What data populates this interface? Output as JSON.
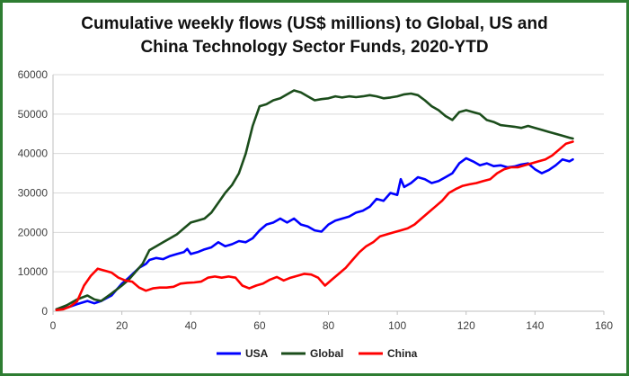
{
  "chart_data": {
    "type": "line",
    "title_line1": "Cumulative weekly flows (US$ millions) to Global, US and",
    "title_line2": "China Technology Sector Funds, 2020-YTD",
    "xlabel": "",
    "ylabel": "",
    "xlim": [
      0,
      160
    ],
    "ylim": [
      0,
      60000
    ],
    "xticks": [
      "0",
      "20",
      "40",
      "60",
      "80",
      "100",
      "120",
      "140",
      "160"
    ],
    "yticks": [
      "0",
      "10000",
      "20000",
      "30000",
      "40000",
      "50000",
      "60000"
    ],
    "grid": "horizontal",
    "legend_position": "bottom",
    "series": [
      {
        "name": "USA",
        "color": "#0000ff",
        "points": [
          [
            1,
            500
          ],
          [
            4,
            900
          ],
          [
            7,
            1800
          ],
          [
            10,
            2600
          ],
          [
            12,
            2000
          ],
          [
            14,
            2600
          ],
          [
            17,
            4000
          ],
          [
            20,
            7000
          ],
          [
            22,
            8500
          ],
          [
            25,
            11000
          ],
          [
            27,
            12000
          ],
          [
            28,
            13000
          ],
          [
            30,
            13500
          ],
          [
            32,
            13200
          ],
          [
            34,
            14000
          ],
          [
            36,
            14500
          ],
          [
            38,
            15000
          ],
          [
            39,
            15800
          ],
          [
            40,
            14500
          ],
          [
            42,
            15000
          ],
          [
            44,
            15700
          ],
          [
            46,
            16200
          ],
          [
            48,
            17500
          ],
          [
            50,
            16500
          ],
          [
            52,
            17000
          ],
          [
            54,
            17800
          ],
          [
            56,
            17500
          ],
          [
            58,
            18500
          ],
          [
            60,
            20500
          ],
          [
            62,
            22000
          ],
          [
            64,
            22500
          ],
          [
            66,
            23500
          ],
          [
            68,
            22500
          ],
          [
            70,
            23500
          ],
          [
            72,
            22000
          ],
          [
            74,
            21500
          ],
          [
            76,
            20500
          ],
          [
            78,
            20200
          ],
          [
            80,
            22000
          ],
          [
            82,
            23000
          ],
          [
            84,
            23500
          ],
          [
            86,
            24000
          ],
          [
            88,
            25000
          ],
          [
            90,
            25500
          ],
          [
            92,
            26500
          ],
          [
            94,
            28500
          ],
          [
            96,
            28000
          ],
          [
            98,
            30000
          ],
          [
            100,
            29500
          ],
          [
            101,
            33500
          ],
          [
            102,
            31500
          ],
          [
            104,
            32500
          ],
          [
            106,
            34000
          ],
          [
            108,
            33500
          ],
          [
            110,
            32500
          ],
          [
            112,
            33000
          ],
          [
            114,
            34000
          ],
          [
            116,
            35000
          ],
          [
            118,
            37500
          ],
          [
            120,
            38800
          ],
          [
            122,
            38000
          ],
          [
            124,
            37000
          ],
          [
            126,
            37500
          ],
          [
            128,
            36800
          ],
          [
            130,
            37000
          ],
          [
            132,
            36500
          ],
          [
            134,
            36700
          ],
          [
            136,
            37200
          ],
          [
            138,
            37500
          ],
          [
            140,
            36000
          ],
          [
            142,
            35000
          ],
          [
            144,
            35800
          ],
          [
            146,
            37000
          ],
          [
            148,
            38500
          ],
          [
            150,
            38000
          ],
          [
            151,
            38500
          ]
        ]
      },
      {
        "name": "Global",
        "color": "#1b4d1b",
        "points": [
          [
            1,
            500
          ],
          [
            4,
            1500
          ],
          [
            7,
            3000
          ],
          [
            10,
            4000
          ],
          [
            12,
            3000
          ],
          [
            14,
            2600
          ],
          [
            17,
            4500
          ],
          [
            20,
            6500
          ],
          [
            22,
            8000
          ],
          [
            24,
            10000
          ],
          [
            26,
            12000
          ],
          [
            28,
            15500
          ],
          [
            30,
            16500
          ],
          [
            32,
            17500
          ],
          [
            34,
            18500
          ],
          [
            36,
            19500
          ],
          [
            38,
            21000
          ],
          [
            40,
            22500
          ],
          [
            42,
            23000
          ],
          [
            44,
            23500
          ],
          [
            46,
            25000
          ],
          [
            48,
            27500
          ],
          [
            50,
            30000
          ],
          [
            52,
            32000
          ],
          [
            54,
            35000
          ],
          [
            56,
            40000
          ],
          [
            58,
            47000
          ],
          [
            60,
            52000
          ],
          [
            62,
            52500
          ],
          [
            64,
            53500
          ],
          [
            66,
            54000
          ],
          [
            68,
            55000
          ],
          [
            70,
            56000
          ],
          [
            72,
            55500
          ],
          [
            74,
            54500
          ],
          [
            76,
            53500
          ],
          [
            78,
            53800
          ],
          [
            80,
            54000
          ],
          [
            82,
            54500
          ],
          [
            84,
            54200
          ],
          [
            86,
            54500
          ],
          [
            88,
            54300
          ],
          [
            90,
            54500
          ],
          [
            92,
            54800
          ],
          [
            94,
            54500
          ],
          [
            96,
            54000
          ],
          [
            98,
            54200
          ],
          [
            100,
            54500
          ],
          [
            102,
            55000
          ],
          [
            104,
            55200
          ],
          [
            106,
            54800
          ],
          [
            108,
            53500
          ],
          [
            110,
            52000
          ],
          [
            112,
            51000
          ],
          [
            114,
            49500
          ],
          [
            116,
            48500
          ],
          [
            118,
            50500
          ],
          [
            120,
            51000
          ],
          [
            122,
            50500
          ],
          [
            124,
            50000
          ],
          [
            126,
            48500
          ],
          [
            128,
            48000
          ],
          [
            130,
            47200
          ],
          [
            132,
            47000
          ],
          [
            134,
            46800
          ],
          [
            136,
            46500
          ],
          [
            138,
            47000
          ],
          [
            140,
            46500
          ],
          [
            142,
            46000
          ],
          [
            144,
            45500
          ],
          [
            146,
            45000
          ],
          [
            148,
            44500
          ],
          [
            150,
            44000
          ],
          [
            151,
            43800
          ]
        ]
      },
      {
        "name": "China",
        "color": "#ff0000",
        "points": [
          [
            1,
            300
          ],
          [
            3,
            500
          ],
          [
            5,
            1200
          ],
          [
            7,
            2500
          ],
          [
            9,
            6500
          ],
          [
            11,
            9000
          ],
          [
            13,
            10800
          ],
          [
            15,
            10300
          ],
          [
            17,
            9800
          ],
          [
            19,
            8500
          ],
          [
            21,
            7800
          ],
          [
            23,
            7500
          ],
          [
            25,
            6000
          ],
          [
            27,
            5200
          ],
          [
            29,
            5800
          ],
          [
            31,
            6000
          ],
          [
            33,
            6000
          ],
          [
            35,
            6200
          ],
          [
            37,
            7000
          ],
          [
            39,
            7200
          ],
          [
            41,
            7300
          ],
          [
            43,
            7500
          ],
          [
            45,
            8500
          ],
          [
            47,
            8800
          ],
          [
            49,
            8500
          ],
          [
            51,
            8800
          ],
          [
            53,
            8500
          ],
          [
            55,
            6500
          ],
          [
            57,
            5800
          ],
          [
            59,
            6500
          ],
          [
            61,
            7000
          ],
          [
            63,
            8000
          ],
          [
            65,
            8700
          ],
          [
            67,
            7800
          ],
          [
            69,
            8500
          ],
          [
            71,
            9000
          ],
          [
            73,
            9500
          ],
          [
            75,
            9300
          ],
          [
            77,
            8500
          ],
          [
            79,
            6500
          ],
          [
            81,
            8000
          ],
          [
            83,
            9500
          ],
          [
            85,
            11000
          ],
          [
            87,
            13000
          ],
          [
            89,
            15000
          ],
          [
            91,
            16500
          ],
          [
            93,
            17500
          ],
          [
            95,
            19000
          ],
          [
            97,
            19500
          ],
          [
            99,
            20000
          ],
          [
            101,
            20500
          ],
          [
            103,
            21000
          ],
          [
            105,
            22000
          ],
          [
            107,
            23500
          ],
          [
            109,
            25000
          ],
          [
            111,
            26500
          ],
          [
            113,
            28000
          ],
          [
            115,
            30000
          ],
          [
            117,
            31000
          ],
          [
            119,
            31800
          ],
          [
            121,
            32200
          ],
          [
            123,
            32500
          ],
          [
            125,
            33000
          ],
          [
            127,
            33500
          ],
          [
            129,
            35000
          ],
          [
            131,
            36000
          ],
          [
            133,
            36500
          ],
          [
            135,
            36500
          ],
          [
            137,
            37000
          ],
          [
            139,
            37500
          ],
          [
            141,
            38000
          ],
          [
            143,
            38500
          ],
          [
            145,
            39500
          ],
          [
            147,
            41000
          ],
          [
            149,
            42500
          ],
          [
            151,
            43000
          ]
        ]
      }
    ]
  }
}
